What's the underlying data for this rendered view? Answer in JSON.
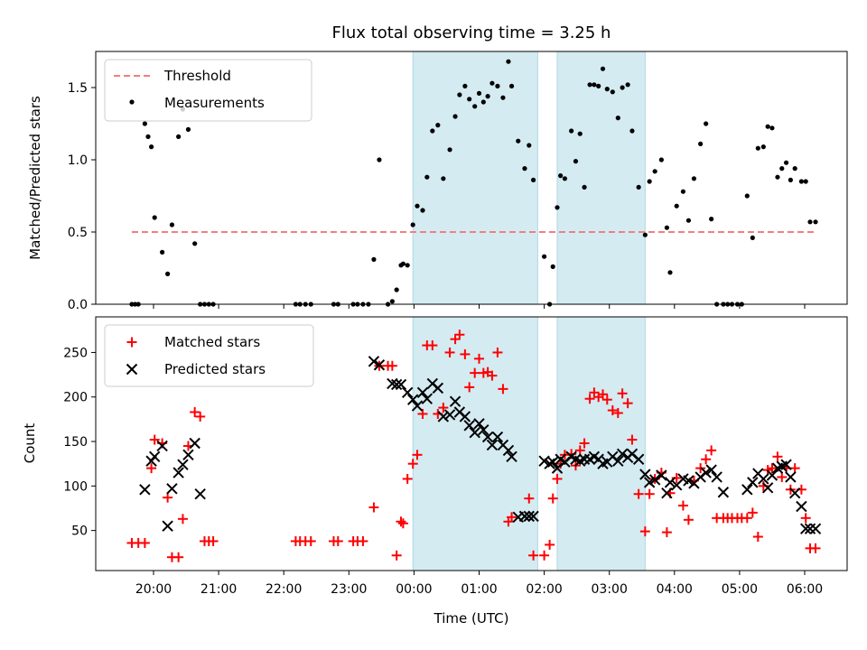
{
  "chart_data": [
    {
      "type": "scatter",
      "title": "Flux total observing time = 3.25 h",
      "xlabel": "",
      "ylabel": "Matched/Predicted stars",
      "ylim": [
        0,
        1.75
      ],
      "yticks": [
        "0.0",
        "0.5",
        "1.0",
        "1.5"
      ],
      "legend_position": "top-left",
      "shaded_intervals": [
        [
          "23:59",
          "01:54"
        ],
        [
          "02:12",
          "03:33"
        ]
      ],
      "threshold": {
        "name": "Threshold",
        "y": 0.5,
        "x_range": [
          "19:40",
          "06:10"
        ],
        "color": "#f08080"
      },
      "series": [
        {
          "name": "Measurements",
          "color": "#000000",
          "x": [
            "19:40",
            "19:43",
            "19:46",
            "19:52",
            "19:55",
            "19:58",
            "20:01",
            "20:08",
            "20:13",
            "20:17",
            "20:23",
            "20:27",
            "20:32",
            "20:38",
            "20:43",
            "20:47",
            "20:51",
            "20:55",
            "22:11",
            "22:15",
            "22:20",
            "22:25",
            "22:46",
            "22:50",
            "23:04",
            "23:08",
            "23:13",
            "23:18",
            "23:23",
            "23:28",
            "23:36",
            "23:40",
            "23:44",
            "23:48",
            "23:50",
            "23:54",
            "23:59",
            "00:03",
            "00:08",
            "00:12",
            "00:17",
            "00:22",
            "00:27",
            "00:33",
            "00:38",
            "00:42",
            "00:47",
            "00:51",
            "00:56",
            "01:00",
            "01:04",
            "01:08",
            "01:12",
            "01:17",
            "01:22",
            "01:27",
            "01:30",
            "01:36",
            "01:42",
            "01:46",
            "01:50",
            "02:00",
            "02:05",
            "02:08",
            "02:12",
            "02:15",
            "02:19",
            "02:25",
            "02:29",
            "02:33",
            "02:37",
            "02:42",
            "02:46",
            "02:50",
            "02:54",
            "02:58",
            "03:03",
            "03:08",
            "03:12",
            "03:17",
            "03:21",
            "03:27",
            "03:33",
            "03:37",
            "03:42",
            "03:48",
            "03:53",
            "03:56",
            "04:02",
            "04:08",
            "04:13",
            "04:18",
            "04:24",
            "04:29",
            "04:34",
            "04:39",
            "04:45",
            "04:49",
            "04:53",
            "04:58",
            "05:02",
            "05:07",
            "05:12",
            "05:17",
            "05:22",
            "05:26",
            "05:30",
            "05:35",
            "05:39",
            "05:43",
            "05:47",
            "05:51",
            "05:57",
            "06:01",
            "06:05",
            "06:10"
          ],
          "y": [
            0,
            0,
            0,
            1.25,
            1.16,
            1.09,
            0.6,
            0.36,
            0.21,
            0.55,
            1.16,
            1.35,
            1.21,
            0.42,
            0,
            0,
            0,
            0,
            0,
            0,
            0,
            0,
            0,
            0,
            0,
            0,
            0,
            0,
            0.31,
            1.0,
            0,
            0.02,
            0.1,
            0.27,
            0.28,
            0.27,
            0.55,
            0.68,
            0.65,
            0.88,
            1.2,
            1.24,
            0.87,
            1.07,
            1.3,
            1.45,
            1.51,
            1.42,
            1.37,
            1.46,
            1.4,
            1.44,
            1.53,
            1.51,
            1.43,
            1.68,
            1.51,
            1.13,
            0.94,
            1.1,
            0.86,
            0.33,
            0,
            0.26,
            0.67,
            0.89,
            0.87,
            1.2,
            0.99,
            1.18,
            0.81,
            1.52,
            1.52,
            1.51,
            1.63,
            1.49,
            1.47,
            1.29,
            1.5,
            1.52,
            1.2,
            0.81,
            0.48,
            0.85,
            0.92,
            1.0,
            0.53,
            0.22,
            0.68,
            0.78,
            0.58,
            0.87,
            1.11,
            1.25,
            0.59,
            0,
            0,
            0,
            0,
            0,
            0,
            0.75,
            0.46,
            1.08,
            1.09,
            1.23,
            1.22,
            0.88,
            0.94,
            0.98,
            0.86,
            0.94,
            0.85,
            0.85,
            0.57,
            0.57
          ]
        }
      ]
    },
    {
      "type": "scatter",
      "title": "",
      "xlabel": "Time (UTC)",
      "ylabel": "Count",
      "ylim": [
        5,
        290
      ],
      "yticks": [
        "50",
        "100",
        "150",
        "200",
        "250"
      ],
      "xticks": [
        "20:00",
        "21:00",
        "22:00",
        "23:00",
        "00:00",
        "01:00",
        "02:00",
        "03:00",
        "04:00",
        "05:00",
        "06:00"
      ],
      "legend_position": "top-left",
      "shaded_intervals": [
        [
          "23:59",
          "01:54"
        ],
        [
          "02:12",
          "03:33"
        ]
      ],
      "series": [
        {
          "name": "Matched stars",
          "color": "#ff0000",
          "x": [
            "19:40",
            "19:46",
            "19:52",
            "19:58",
            "20:01",
            "20:08",
            "20:13",
            "20:17",
            "20:23",
            "20:27",
            "20:32",
            "20:38",
            "20:43",
            "20:47",
            "20:51",
            "20:55",
            "22:11",
            "22:15",
            "22:20",
            "22:25",
            "22:46",
            "22:50",
            "23:04",
            "23:08",
            "23:13",
            "23:23",
            "23:28",
            "23:36",
            "23:40",
            "23:44",
            "23:48",
            "23:50",
            "23:54",
            "23:59",
            "00:03",
            "00:08",
            "00:12",
            "00:17",
            "00:22",
            "00:27",
            "00:33",
            "00:38",
            "00:42",
            "00:47",
            "00:51",
            "00:56",
            "01:00",
            "01:04",
            "01:08",
            "01:12",
            "01:17",
            "01:22",
            "01:27",
            "01:30",
            "01:46",
            "01:50",
            "02:00",
            "02:05",
            "02:08",
            "02:12",
            "02:15",
            "02:19",
            "02:25",
            "02:29",
            "02:33",
            "02:37",
            "02:42",
            "02:46",
            "02:50",
            "02:54",
            "02:58",
            "03:03",
            "03:08",
            "03:12",
            "03:17",
            "03:21",
            "03:27",
            "03:33",
            "03:37",
            "03:42",
            "03:48",
            "03:53",
            "03:56",
            "04:02",
            "04:08",
            "04:13",
            "04:18",
            "04:24",
            "04:29",
            "04:34",
            "04:39",
            "04:45",
            "04:49",
            "04:53",
            "04:58",
            "05:02",
            "05:07",
            "05:12",
            "05:17",
            "05:22",
            "05:26",
            "05:30",
            "05:35",
            "05:39",
            "05:43",
            "05:47",
            "05:51",
            "05:57",
            "06:01",
            "06:05",
            "06:10"
          ],
          "y": [
            36,
            36,
            36,
            120,
            152,
            148,
            87,
            20,
            20,
            63,
            145,
            183,
            178,
            38,
            38,
            38,
            38,
            38,
            38,
            38,
            38,
            38,
            38,
            38,
            38,
            76,
            235,
            235,
            235,
            22,
            60,
            58,
            108,
            125,
            135,
            181,
            258,
            258,
            181,
            188,
            250,
            265,
            270,
            248,
            211,
            227,
            243,
            227,
            228,
            224,
            250,
            209,
            60,
            65,
            86,
            22,
            22,
            34,
            86,
            108,
            125,
            135,
            136,
            123,
            140,
            148,
            198,
            205,
            200,
            203,
            197,
            185,
            182,
            204,
            193,
            152,
            91,
            49,
            91,
            108,
            115,
            48,
            92,
            109,
            78,
            62,
            106,
            120,
            130,
            140,
            64,
            64,
            64,
            64,
            64,
            64,
            64,
            70,
            43,
            100,
            118,
            120,
            133,
            110,
            120,
            96,
            120,
            96,
            64,
            30,
            30
          ]
        },
        {
          "name": "Predicted stars",
          "color": "#000000",
          "x": [
            "19:52",
            "19:58",
            "20:01",
            "20:08",
            "20:13",
            "20:17",
            "20:23",
            "20:27",
            "20:32",
            "20:38",
            "20:43",
            "23:23",
            "23:28",
            "23:40",
            "23:44",
            "23:48",
            "23:54",
            "23:59",
            "00:03",
            "00:08",
            "00:12",
            "00:17",
            "00:22",
            "00:27",
            "00:33",
            "00:38",
            "00:42",
            "00:47",
            "00:51",
            "00:56",
            "01:00",
            "01:04",
            "01:08",
            "01:12",
            "01:17",
            "01:22",
            "01:27",
            "01:30",
            "01:36",
            "01:42",
            "01:46",
            "01:50",
            "02:00",
            "02:05",
            "02:08",
            "02:12",
            "02:15",
            "02:19",
            "02:25",
            "02:29",
            "02:33",
            "02:37",
            "02:42",
            "02:46",
            "02:50",
            "02:54",
            "02:58",
            "03:03",
            "03:08",
            "03:12",
            "03:17",
            "03:21",
            "03:27",
            "03:33",
            "03:37",
            "03:42",
            "03:48",
            "03:53",
            "03:56",
            "04:02",
            "04:08",
            "04:13",
            "04:18",
            "04:24",
            "04:29",
            "04:34",
            "04:39",
            "04:45",
            "05:07",
            "05:12",
            "05:17",
            "05:22",
            "05:26",
            "05:30",
            "05:35",
            "05:39",
            "05:43",
            "05:47",
            "05:51",
            "05:57",
            "06:01",
            "06:05",
            "06:10"
          ],
          "y": [
            96,
            128,
            133,
            145,
            55,
            97,
            115,
            124,
            135,
            148,
            91,
            240,
            236,
            215,
            214,
            214,
            205,
            197,
            190,
            205,
            198,
            215,
            210,
            178,
            180,
            195,
            183,
            178,
            168,
            160,
            170,
            163,
            155,
            146,
            155,
            146,
            140,
            133,
            65,
            66,
            66,
            66,
            128,
            125,
            127,
            120,
            130,
            127,
            133,
            130,
            128,
            130,
            130,
            133,
            130,
            125,
            127,
            133,
            128,
            136,
            132,
            136,
            130,
            113,
            104,
            107,
            112,
            92,
            104,
            101,
            108,
            106,
            103,
            110,
            115,
            118,
            110,
            93,
            96,
            104,
            114,
            108,
            98,
            112,
            120,
            122,
            124,
            110,
            92,
            77,
            52,
            52,
            52
          ]
        }
      ]
    }
  ]
}
